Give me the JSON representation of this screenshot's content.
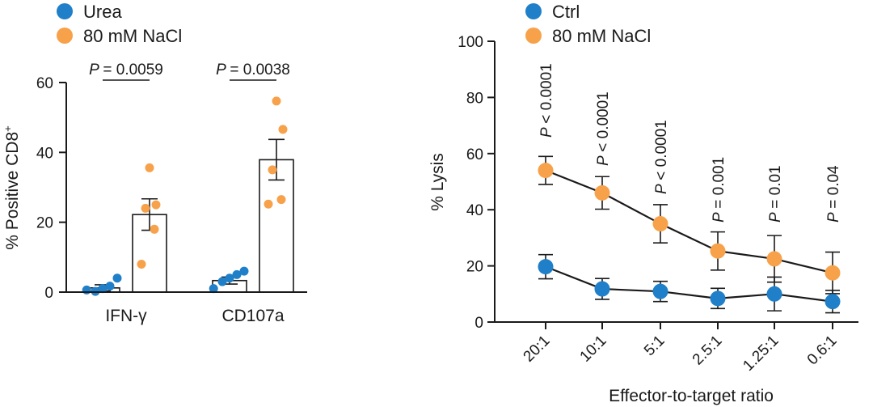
{
  "colors": {
    "blue": "#1f7fc9",
    "orange": "#f7a24a"
  },
  "chart_data": [
    {
      "type": "bar",
      "ylabel": "% Positive CD8",
      "ylabel_sup": "+",
      "ylim": [
        0,
        60
      ],
      "yticks": [
        0,
        20,
        40,
        60
      ],
      "categories": [
        "IFN-γ",
        "CD107a"
      ],
      "legend": {
        "placement": "top-left",
        "entries": [
          "Urea",
          "80 mM NaCl"
        ]
      },
      "series": [
        {
          "name": "Urea",
          "color": "blue",
          "means": [
            1.2,
            3.3
          ],
          "sem": [
            0.9,
            1.0
          ],
          "points": [
            [
              0.6,
              0.2,
              1.0,
              1.7,
              4.0
            ],
            [
              1.0,
              3.0,
              4.0,
              5.0,
              6.0
            ]
          ]
        },
        {
          "name": "80 mM NaCl",
          "color": "orange",
          "means": [
            22.2,
            37.9
          ],
          "sem": [
            4.5,
            5.8
          ],
          "points": [
            [
              8.0,
              18.0,
              24.0,
              25.0,
              35.6
            ],
            [
              25.2,
              26.5,
              35.0,
              46.6,
              54.7
            ]
          ]
        }
      ],
      "annotations": [
        {
          "category": "IFN-γ",
          "p_label": "P",
          "p_value": "= 0.0059"
        },
        {
          "category": "CD107a",
          "p_label": "P",
          "p_value": "= 0.0038"
        }
      ]
    },
    {
      "type": "line",
      "xlabel": "Effector-to-target ratio",
      "ylabel": "% Lysis",
      "ylim": [
        0,
        100
      ],
      "yticks": [
        0,
        20,
        40,
        60,
        80,
        100
      ],
      "categories": [
        "20:1",
        "10:1",
        "5:1",
        "2.5:1",
        "1.25:1",
        "0.6:1"
      ],
      "legend": {
        "placement": "top-left",
        "entries": [
          "Ctrl",
          "80 mM NaCl"
        ]
      },
      "series": [
        {
          "name": "Ctrl",
          "color": "blue",
          "values": [
            19.7,
            11.8,
            10.9,
            8.4,
            10.0,
            7.3
          ],
          "err": [
            4.3,
            3.7,
            3.6,
            3.6,
            6.0,
            4.0
          ]
        },
        {
          "name": "80 mM NaCl",
          "color": "orange",
          "values": [
            54.0,
            46.0,
            35.0,
            25.3,
            22.5,
            17.5
          ],
          "err": [
            5.0,
            5.8,
            6.8,
            6.8,
            8.3,
            7.4
          ]
        }
      ],
      "p_values": [
        {
          "p_label": "P",
          "p_value": "< 0.0001"
        },
        {
          "p_label": "P",
          "p_value": "< 0.0001"
        },
        {
          "p_label": "P",
          "p_value": "< 0.0001"
        },
        {
          "p_label": "P",
          "p_value": "= 0.001"
        },
        {
          "p_label": "P",
          "p_value": "= 0.01"
        },
        {
          "p_label": "P",
          "p_value": "= 0.04"
        }
      ]
    }
  ]
}
